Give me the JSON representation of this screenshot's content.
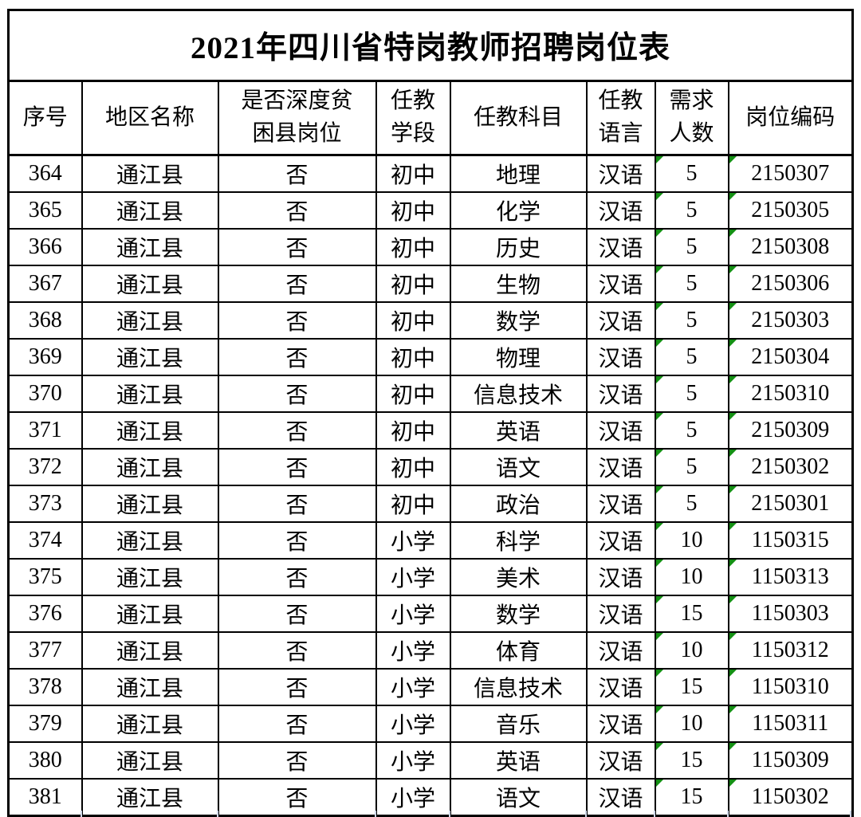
{
  "page": {
    "title": "2021年四川省特岗教师招聘岗位表"
  },
  "colors": {
    "border": "#000000",
    "text": "#000000",
    "flag_green": "#149014",
    "faint_gridline": "#ccd5e6",
    "background": "#ffffff"
  },
  "icons": {
    "corner_flag": "number-stored-as-text-flag-icon"
  },
  "table": {
    "headers": [
      {
        "key": "no",
        "label": "序号"
      },
      {
        "key": "region",
        "label": "地区名称"
      },
      {
        "key": "poverty",
        "label": "是否深度贫\n困县岗位"
      },
      {
        "key": "stage",
        "label": "任教\n学段"
      },
      {
        "key": "subject",
        "label": "任教科目"
      },
      {
        "key": "language",
        "label": "任教\n语言"
      },
      {
        "key": "demand",
        "label": "需求\n人数"
      },
      {
        "key": "code",
        "label": "岗位编码"
      }
    ],
    "flagged_keys": [
      "demand",
      "code"
    ],
    "rows": [
      {
        "no": "364",
        "region": "通江县",
        "poverty": "否",
        "stage": "初中",
        "subject": "地理",
        "language": "汉语",
        "demand": "5",
        "code": "2150307"
      },
      {
        "no": "365",
        "region": "通江县",
        "poverty": "否",
        "stage": "初中",
        "subject": "化学",
        "language": "汉语",
        "demand": "5",
        "code": "2150305"
      },
      {
        "no": "366",
        "region": "通江县",
        "poverty": "否",
        "stage": "初中",
        "subject": "历史",
        "language": "汉语",
        "demand": "5",
        "code": "2150308"
      },
      {
        "no": "367",
        "region": "通江县",
        "poverty": "否",
        "stage": "初中",
        "subject": "生物",
        "language": "汉语",
        "demand": "5",
        "code": "2150306"
      },
      {
        "no": "368",
        "region": "通江县",
        "poverty": "否",
        "stage": "初中",
        "subject": "数学",
        "language": "汉语",
        "demand": "5",
        "code": "2150303"
      },
      {
        "no": "369",
        "region": "通江县",
        "poverty": "否",
        "stage": "初中",
        "subject": "物理",
        "language": "汉语",
        "demand": "5",
        "code": "2150304"
      },
      {
        "no": "370",
        "region": "通江县",
        "poverty": "否",
        "stage": "初中",
        "subject": "信息技术",
        "language": "汉语",
        "demand": "5",
        "code": "2150310"
      },
      {
        "no": "371",
        "region": "通江县",
        "poverty": "否",
        "stage": "初中",
        "subject": "英语",
        "language": "汉语",
        "demand": "5",
        "code": "2150309"
      },
      {
        "no": "372",
        "region": "通江县",
        "poverty": "否",
        "stage": "初中",
        "subject": "语文",
        "language": "汉语",
        "demand": "5",
        "code": "2150302"
      },
      {
        "no": "373",
        "region": "通江县",
        "poverty": "否",
        "stage": "初中",
        "subject": "政治",
        "language": "汉语",
        "demand": "5",
        "code": "2150301"
      },
      {
        "no": "374",
        "region": "通江县",
        "poverty": "否",
        "stage": "小学",
        "subject": "科学",
        "language": "汉语",
        "demand": "10",
        "code": "1150315"
      },
      {
        "no": "375",
        "region": "通江县",
        "poverty": "否",
        "stage": "小学",
        "subject": "美术",
        "language": "汉语",
        "demand": "10",
        "code": "1150313"
      },
      {
        "no": "376",
        "region": "通江县",
        "poverty": "否",
        "stage": "小学",
        "subject": "数学",
        "language": "汉语",
        "demand": "15",
        "code": "1150303"
      },
      {
        "no": "377",
        "region": "通江县",
        "poverty": "否",
        "stage": "小学",
        "subject": "体育",
        "language": "汉语",
        "demand": "10",
        "code": "1150312"
      },
      {
        "no": "378",
        "region": "通江县",
        "poverty": "否",
        "stage": "小学",
        "subject": "信息技术",
        "language": "汉语",
        "demand": "15",
        "code": "1150310"
      },
      {
        "no": "379",
        "region": "通江县",
        "poverty": "否",
        "stage": "小学",
        "subject": "音乐",
        "language": "汉语",
        "demand": "10",
        "code": "1150311"
      },
      {
        "no": "380",
        "region": "通江县",
        "poverty": "否",
        "stage": "小学",
        "subject": "英语",
        "language": "汉语",
        "demand": "15",
        "code": "1150309"
      },
      {
        "no": "381",
        "region": "通江县",
        "poverty": "否",
        "stage": "小学",
        "subject": "语文",
        "language": "汉语",
        "demand": "15",
        "code": "1150302"
      }
    ]
  }
}
